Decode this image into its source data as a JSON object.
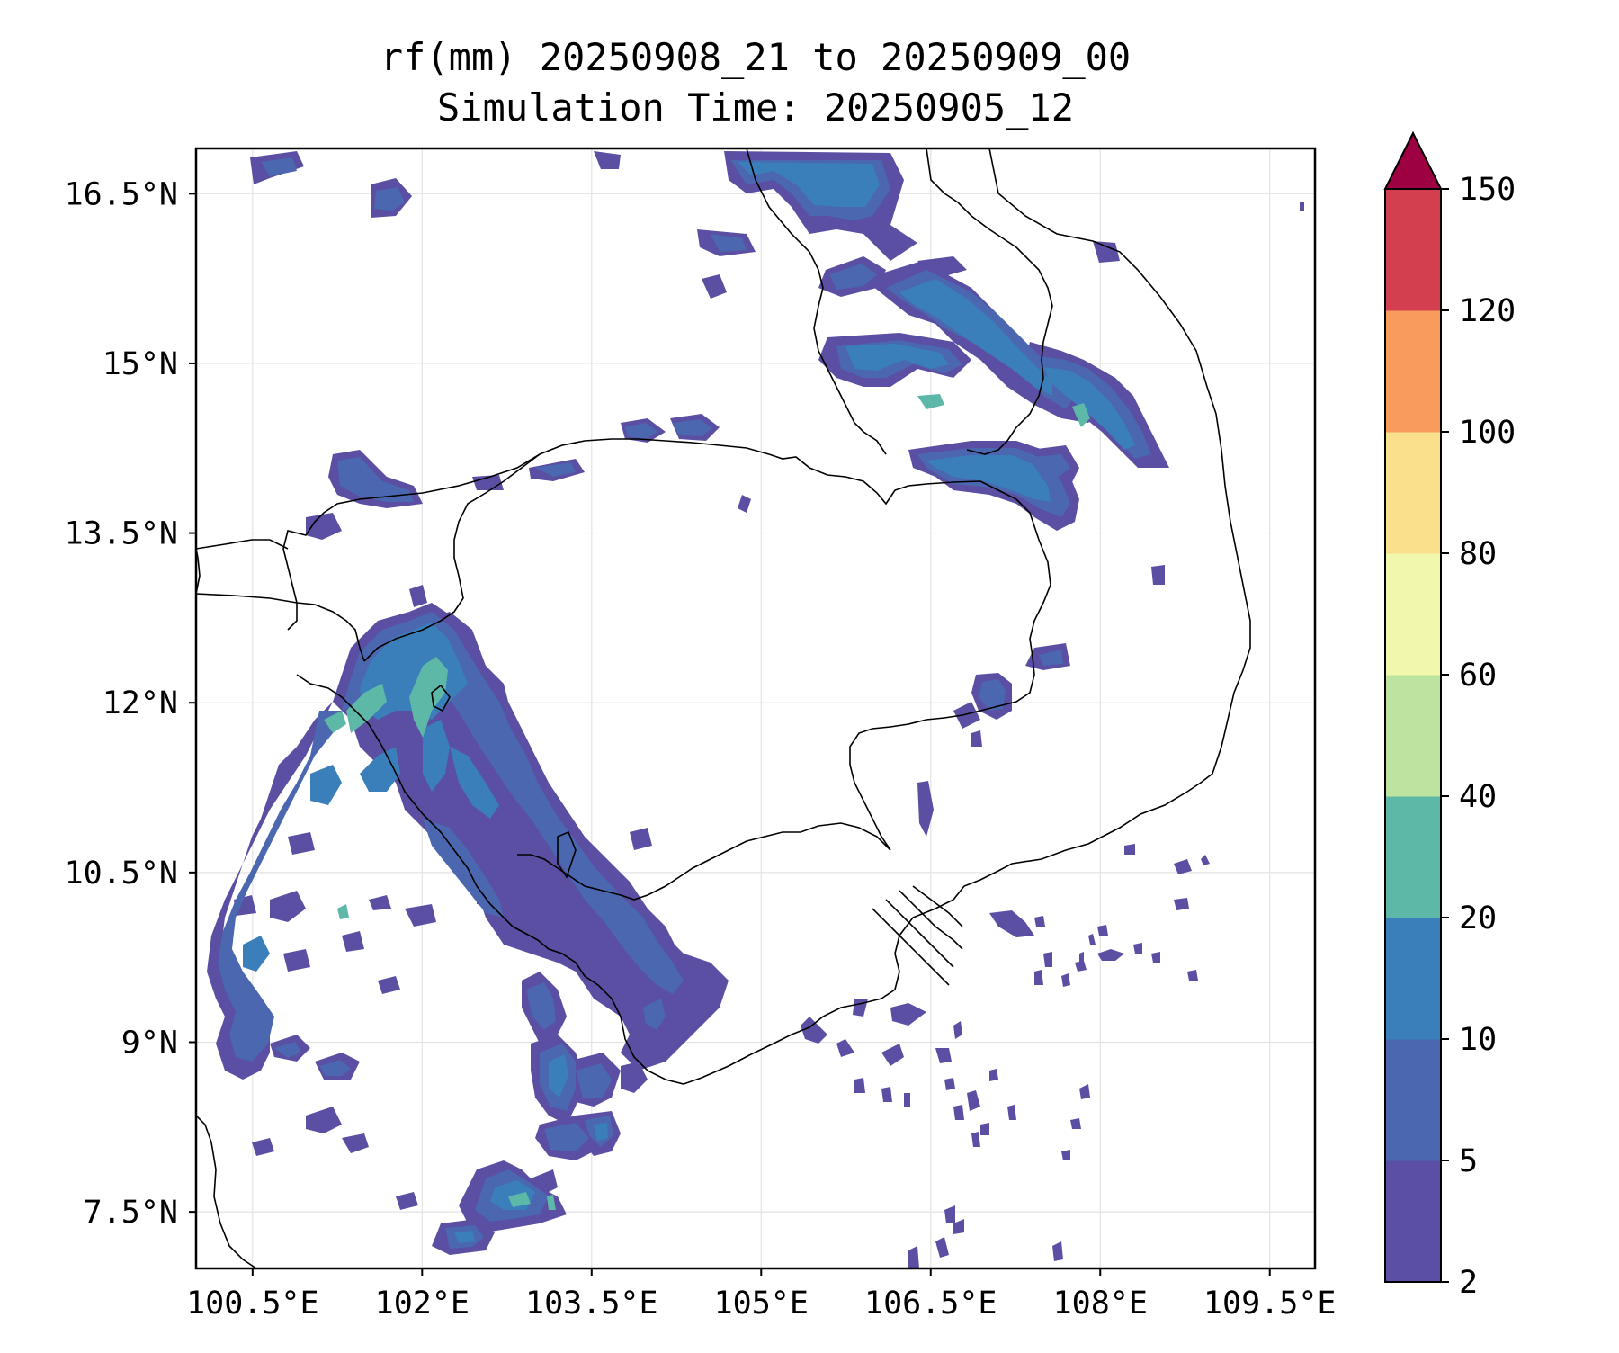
{
  "title": {
    "line1": "rf(mm) 20250908_21 to 20250909_00",
    "line2": "Simulation Time: 20250905_12"
  },
  "map": {
    "lon_range": [
      100.0,
      109.9
    ],
    "lat_range": [
      7.0,
      16.9
    ],
    "x_ticks": [
      {
        "value": 100.5,
        "label": "100.5°E"
      },
      {
        "value": 102.0,
        "label": "102°E"
      },
      {
        "value": 103.5,
        "label": "103.5°E"
      },
      {
        "value": 105.0,
        "label": "105°E"
      },
      {
        "value": 106.5,
        "label": "106.5°E"
      },
      {
        "value": 108.0,
        "label": "108°E"
      },
      {
        "value": 109.5,
        "label": "109.5°E"
      }
    ],
    "y_ticks": [
      {
        "value": 16.5,
        "label": "16.5°N"
      },
      {
        "value": 15.0,
        "label": "15°N"
      },
      {
        "value": 13.5,
        "label": "13.5°N"
      },
      {
        "value": 12.0,
        "label": "12°N"
      },
      {
        "value": 10.5,
        "label": "10.5°N"
      },
      {
        "value": 9.0,
        "label": "9°N"
      },
      {
        "value": 7.5,
        "label": "7.5°N"
      }
    ],
    "gridlines": true
  },
  "colorbar": {
    "extend": "max",
    "levels": [
      "2",
      "5",
      "10",
      "20",
      "40",
      "60",
      "80",
      "100",
      "120",
      "150"
    ],
    "colors": [
      "#5a4fa2",
      "#4a67b0",
      "#3a7fba",
      "#5db8a8",
      "#bde3a1",
      "#f1f8ad",
      "#fadf8d",
      "#f89b5c",
      "#d33f4f",
      "#9e0142"
    ]
  }
}
